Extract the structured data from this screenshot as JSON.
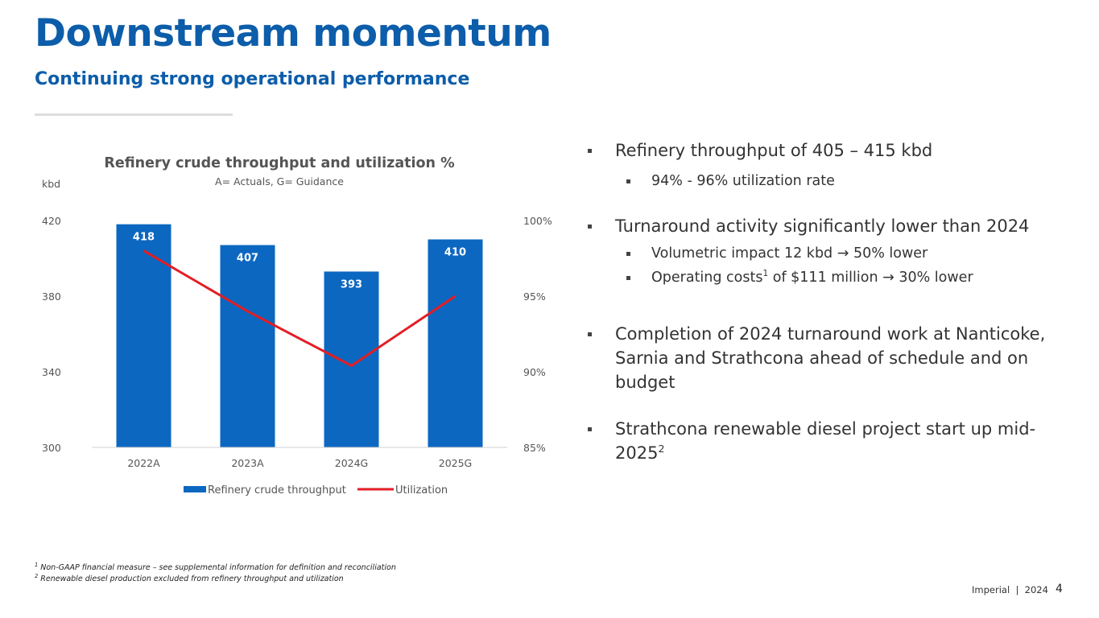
{
  "header": {
    "title": "Downstream momentum",
    "subtitle": "Continuing strong operational performance"
  },
  "chart_data": {
    "type": "bar",
    "title": "Refinery crude throughput and utilization %",
    "subtitle": "A= Actuals, G= Guidance",
    "ylabel": "kbd",
    "categories": [
      "2022A",
      "2023A",
      "2024G",
      "2025G"
    ],
    "series": [
      {
        "name": "Refinery crude throughput",
        "type": "bar",
        "axis": "left",
        "values": [
          418,
          407,
          393,
          410
        ],
        "color": "#0C67C0"
      },
      {
        "name": "Utilization",
        "type": "line",
        "axis": "right",
        "values": [
          98,
          94,
          90.4,
          95
        ],
        "color": "#E31E24"
      }
    ],
    "data_labels": [
      "418",
      "407",
      "393",
      "410"
    ],
    "ylim": [
      300,
      420
    ],
    "yticks": [
      "300",
      "340",
      "380",
      "420"
    ],
    "y2lim": [
      85,
      100
    ],
    "y2ticks": [
      "85%",
      "90%",
      "95%",
      "100%"
    ],
    "grid": false,
    "legend": "bottom"
  },
  "bullets": {
    "b1": "Refinery throughput of 405 – 415 kbd",
    "b1_sub": "94% - 96% utilization rate",
    "b2": "Turnaround activity significantly lower than 2024",
    "b2_sub1": "Volumetric impact 12 kbd → 50% lower",
    "b2_sub2_a": "Operating costs",
    "b2_sub2_sup": "1",
    "b2_sub2_b": " of $111 million → 30% lower",
    "b3": "Completion of 2024 turnaround work at Nanticoke, Sarnia and Strathcona ahead of schedule and on budget",
    "b4": "Strathcona renewable diesel project start up mid-2025",
    "b4_sup": "2"
  },
  "footnotes": {
    "n1_mark": "1",
    "n1": " Non-GAAP financial measure – see supplemental information for definition and reconciliation",
    "n2_mark": "2",
    "n2": " Renewable diesel production excluded from refinery throughput and utilization"
  },
  "footer": {
    "brand": "Imperial  |  2024",
    "page": "4"
  }
}
